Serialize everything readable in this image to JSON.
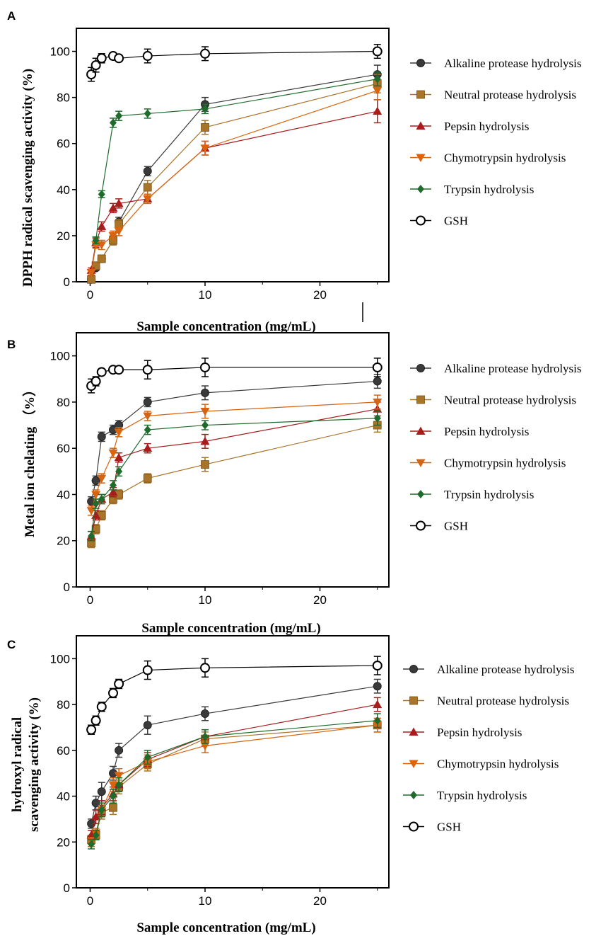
{
  "chart_data": [
    {
      "panel": "A",
      "type": "line",
      "xlabel": "Sample concentration (mg/mL)",
      "ylabel": "DPPH radical scavenging activity (%)",
      "xlim": [
        0,
        25
      ],
      "ylim": [
        0,
        110
      ],
      "xticks": [
        0,
        10,
        20
      ],
      "yticks": [
        0,
        20,
        40,
        60,
        80,
        100
      ],
      "legend_position": "right",
      "series": [
        {
          "name": "Alkaline protease hydrolysis",
          "marker": "circle-filled",
          "color": "#3a3a3a",
          "x": [
            0.1,
            0.5,
            1,
            2,
            2.5,
            5,
            10,
            25
          ],
          "y": [
            1,
            6,
            10,
            18,
            26,
            48,
            77,
            90
          ],
          "err": [
            1,
            1,
            1.5,
            2,
            2,
            2,
            3,
            4
          ]
        },
        {
          "name": "Neutral protease hydrolysis",
          "marker": "square",
          "color": "#a8742a",
          "x": [
            0.1,
            0.5,
            1,
            2,
            2.5,
            5,
            10,
            25
          ],
          "y": [
            1,
            7,
            10,
            18,
            25,
            41,
            67,
            86
          ],
          "err": [
            1,
            1,
            1.5,
            2,
            2,
            3,
            3,
            4
          ]
        },
        {
          "name": "Pepsin hydrolysis",
          "marker": "triangle-up",
          "color": "#a81c1c",
          "x": [
            0.1,
            0.5,
            1,
            2,
            2.5,
            5,
            10,
            25
          ],
          "y": [
            5,
            17,
            24,
            32,
            34,
            36,
            58,
            74
          ],
          "err": [
            1,
            2,
            2,
            2,
            2,
            2,
            3,
            5
          ]
        },
        {
          "name": "Chymotrypsin hydrolysis",
          "marker": "triangle-down",
          "color": "#d8640f",
          "x": [
            0.1,
            0.5,
            1,
            2,
            2.5,
            5,
            10,
            25
          ],
          "y": [
            4,
            16,
            16,
            20,
            22,
            36,
            58,
            83
          ],
          "err": [
            1,
            1.5,
            2,
            2,
            2,
            2,
            3,
            4
          ]
        },
        {
          "name": "Trypsin hydrolysis",
          "marker": "diamond",
          "color": "#1f6b2c",
          "x": [
            0.5,
            1,
            2,
            2.5,
            5,
            10,
            25
          ],
          "y": [
            18,
            38,
            69,
            72,
            73,
            75,
            88
          ],
          "err": [
            1.5,
            1.5,
            2,
            2,
            2,
            2,
            3
          ]
        },
        {
          "name": "GSH",
          "marker": "circle-open",
          "color": "#000000",
          "x": [
            0.1,
            0.5,
            1,
            2,
            2.5,
            5,
            10,
            25
          ],
          "y": [
            90,
            94,
            97,
            98,
            97,
            98,
            99,
            100
          ],
          "err": [
            3,
            3,
            2,
            1,
            1,
            3,
            3,
            3
          ]
        }
      ]
    },
    {
      "panel": "B",
      "type": "line",
      "xlabel": "Sample concentration (mg/mL)",
      "ylabel": "Metal ion chelating （%）",
      "xlim": [
        0,
        25
      ],
      "ylim": [
        0,
        110
      ],
      "xticks": [
        0,
        10,
        20
      ],
      "yticks": [
        0,
        20,
        40,
        60,
        80,
        100
      ],
      "legend_position": "right",
      "series": [
        {
          "name": "Alkaline protease hydrolysis",
          "marker": "circle-filled",
          "color": "#3a3a3a",
          "x": [
            0.1,
            0.5,
            1,
            2,
            2.5,
            5,
            10,
            25
          ],
          "y": [
            37,
            46,
            65,
            68,
            70,
            80,
            84,
            89
          ],
          "err": [
            2,
            2,
            2,
            2,
            2,
            2,
            3,
            3
          ]
        },
        {
          "name": "Neutral protease hydrolysis",
          "marker": "square",
          "color": "#a8742a",
          "x": [
            0.1,
            0.5,
            1,
            2,
            2.5,
            5,
            10,
            25
          ],
          "y": [
            19,
            25,
            31,
            38,
            40,
            47,
            53,
            70
          ],
          "err": [
            2,
            2,
            2,
            2,
            2,
            2,
            3,
            3
          ]
        },
        {
          "name": "Pepsin hydrolysis",
          "marker": "triangle-up",
          "color": "#a81c1c",
          "x": [
            0.1,
            0.5,
            1,
            2,
            2.5,
            5,
            10,
            25
          ],
          "y": [
            22,
            31,
            38,
            41,
            56,
            60,
            63,
            77
          ],
          "err": [
            2,
            2,
            2,
            2,
            2,
            2,
            3,
            3
          ]
        },
        {
          "name": "Chymotrypsin hydrolysis",
          "marker": "triangle-down",
          "color": "#d8640f",
          "x": [
            0.1,
            0.5,
            1,
            2,
            2.5,
            5,
            10,
            25
          ],
          "y": [
            33,
            40,
            47,
            58,
            67,
            74,
            76,
            80
          ],
          "err": [
            2,
            2,
            2,
            2,
            2,
            2,
            3,
            3
          ]
        },
        {
          "name": "Trypsin hydrolysis",
          "marker": "diamond",
          "color": "#1f6b2c",
          "x": [
            0.1,
            0.5,
            1,
            2,
            2.5,
            5,
            10,
            25
          ],
          "y": [
            22,
            36,
            38,
            44,
            50,
            68,
            70,
            73
          ],
          "err": [
            2,
            2,
            2,
            2,
            2,
            2,
            2,
            3
          ]
        },
        {
          "name": "GSH",
          "marker": "circle-open",
          "color": "#000000",
          "x": [
            0.1,
            0.5,
            1,
            2,
            2.5,
            5,
            10,
            25
          ],
          "y": [
            87,
            89,
            93,
            94,
            94,
            94,
            95,
            95
          ],
          "err": [
            3,
            2,
            1,
            1,
            1,
            4,
            4,
            4
          ]
        }
      ]
    },
    {
      "panel": "C",
      "type": "line",
      "xlabel": "Sample concentration (mg/mL)",
      "ylabel": [
        "hydroxyl radical",
        "scavenging activity (%)"
      ],
      "xlim": [
        0,
        25
      ],
      "ylim": [
        0,
        110
      ],
      "xticks": [
        0,
        10,
        20
      ],
      "yticks": [
        0,
        20,
        40,
        60,
        80,
        100
      ],
      "legend_position": "right",
      "series": [
        {
          "name": "Alkaline protease hydrolysis",
          "marker": "circle-filled",
          "color": "#3a3a3a",
          "x": [
            0.1,
            0.5,
            1,
            2,
            2.5,
            5,
            10,
            25
          ],
          "y": [
            28,
            37,
            42,
            50,
            60,
            71,
            76,
            88
          ],
          "err": [
            2,
            3,
            4,
            3,
            3,
            4,
            3,
            3
          ]
        },
        {
          "name": "Neutral protease hydrolysis",
          "marker": "square",
          "color": "#a8742a",
          "x": [
            0.1,
            0.5,
            1,
            2,
            2.5,
            5,
            10,
            25
          ],
          "y": [
            21,
            23,
            33,
            35,
            44,
            54,
            65,
            71
          ],
          "err": [
            2,
            2,
            3,
            3,
            3,
            3,
            3,
            3
          ]
        },
        {
          "name": "Pepsin hydrolysis",
          "marker": "triangle-up",
          "color": "#a81c1c",
          "x": [
            0.1,
            0.5,
            1,
            2,
            2.5,
            5,
            10,
            25
          ],
          "y": [
            23,
            31,
            35,
            41,
            45,
            56,
            66,
            80
          ],
          "err": [
            2,
            3,
            3,
            3,
            3,
            3,
            3,
            3
          ]
        },
        {
          "name": "Chymotrypsin hydrolysis",
          "marker": "triangle-down",
          "color": "#d8640f",
          "x": [
            0.1,
            0.5,
            1,
            2,
            2.5,
            5,
            10,
            25
          ],
          "y": [
            20,
            24,
            34,
            45,
            49,
            55,
            62,
            71
          ],
          "err": [
            2,
            2,
            3,
            3,
            3,
            3,
            3,
            3
          ]
        },
        {
          "name": "Trypsin hydrolysis",
          "marker": "diamond",
          "color": "#1f6b2c",
          "x": [
            0.1,
            0.5,
            1,
            2,
            2.5,
            5,
            10,
            25
          ],
          "y": [
            19,
            23,
            34,
            40,
            45,
            57,
            66,
            73
          ],
          "err": [
            2,
            2,
            3,
            3,
            3,
            3,
            3,
            3
          ]
        },
        {
          "name": "GSH",
          "marker": "circle-open",
          "color": "#000000",
          "x": [
            0.1,
            0.5,
            1,
            2,
            2.5,
            5,
            10,
            25
          ],
          "y": [
            69,
            73,
            79,
            85,
            89,
            95,
            96,
            97
          ],
          "err": [
            2,
            2,
            2,
            2,
            2,
            4,
            4,
            4
          ]
        }
      ]
    }
  ]
}
